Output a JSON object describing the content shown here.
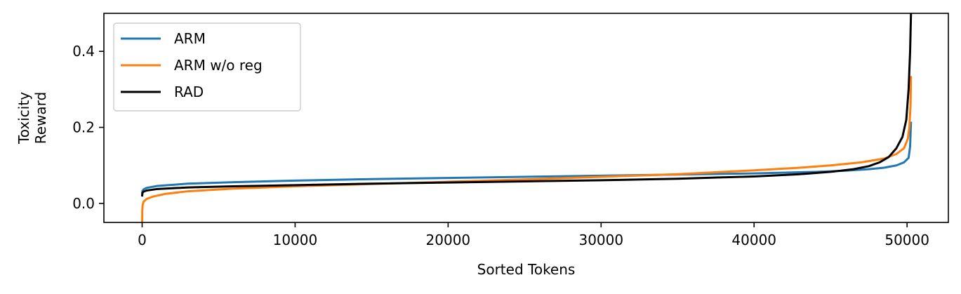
{
  "chart_data": {
    "type": "line",
    "title": "",
    "xlabel": "Sorted Tokens",
    "ylabel_lines": [
      "Toxicity",
      "Reward"
    ],
    "xlim": [
      -2500,
      52700
    ],
    "ylim": [
      -0.05,
      0.5
    ],
    "xticks": [
      0,
      10000,
      20000,
      30000,
      40000,
      50000
    ],
    "xtick_labels": [
      "0",
      "10000",
      "20000",
      "30000",
      "40000",
      "50000"
    ],
    "yticks": [
      0.0,
      0.2,
      0.4
    ],
    "ytick_labels": [
      "0.0",
      "0.2",
      "0.4"
    ],
    "grid": false,
    "legend_position": "upper-left",
    "series": [
      {
        "name": "ARM",
        "color": "#1f77b4",
        "x": [
          0,
          20,
          100,
          300,
          1000,
          3000,
          6000,
          10000,
          15000,
          20000,
          25000,
          30000,
          35000,
          40000,
          44000,
          46000,
          47500,
          48500,
          49300,
          49800,
          50100,
          50200,
          50257
        ],
        "y": [
          0.02,
          0.033,
          0.037,
          0.041,
          0.046,
          0.052,
          0.056,
          0.06,
          0.064,
          0.067,
          0.07,
          0.073,
          0.076,
          0.079,
          0.083,
          0.086,
          0.09,
          0.094,
          0.1,
          0.108,
          0.12,
          0.15,
          0.215
        ]
      },
      {
        "name": "ARM w/o reg",
        "color": "#ff7f0e",
        "x": [
          0,
          10,
          30,
          100,
          300,
          700,
          1500,
          3000,
          6000,
          10000,
          15000,
          20000,
          25000,
          30000,
          35000,
          40000,
          43000,
          45000,
          47000,
          48500,
          49300,
          49800,
          50050,
          50150,
          50230,
          50257
        ],
        "y": [
          -0.05,
          -0.02,
          -0.005,
          0.005,
          0.012,
          0.018,
          0.025,
          0.032,
          0.039,
          0.045,
          0.051,
          0.057,
          0.063,
          0.07,
          0.077,
          0.087,
          0.094,
          0.1,
          0.108,
          0.118,
          0.13,
          0.145,
          0.17,
          0.2,
          0.26,
          0.335
        ]
      },
      {
        "name": "RAD",
        "color": "#000000",
        "x": [
          0,
          20,
          100,
          300,
          1000,
          3000,
          6000,
          10000,
          15000,
          20000,
          25000,
          30000,
          35000,
          40000,
          43000,
          45000,
          46500,
          47500,
          48200,
          48800,
          49300,
          49700,
          49950,
          50100,
          50200,
          50257
        ],
        "y": [
          0.018,
          0.028,
          0.031,
          0.034,
          0.038,
          0.042,
          0.045,
          0.048,
          0.052,
          0.055,
          0.058,
          0.061,
          0.065,
          0.071,
          0.077,
          0.083,
          0.09,
          0.098,
          0.108,
          0.122,
          0.145,
          0.175,
          0.22,
          0.3,
          0.4,
          0.5
        ]
      }
    ]
  }
}
